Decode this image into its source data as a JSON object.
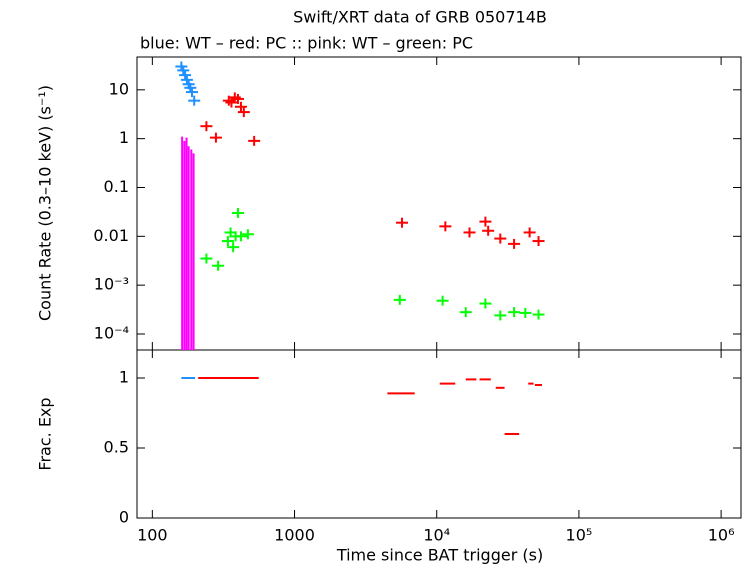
{
  "chart_data": [
    {
      "type": "scatter",
      "title": "Swift/XRT data of GRB 050714B",
      "subtitle": "blue: WT  – red: PC  :: pink: WT  – green: PC",
      "y_label": "Count Rate (0.3–10 keV) (s⁻¹)",
      "log_x": true,
      "log_y": true,
      "xlim": [
        78,
        1380000
      ],
      "ylim": [
        4.7e-05,
        47
      ],
      "yticks": [
        10,
        1,
        0.1,
        0.01,
        {
          "value": 0.001,
          "label": "10⁻³"
        },
        {
          "value": 0.0001,
          "label": "10⁻⁴"
        }
      ],
      "series": [
        {
          "color": "#1e90ff",
          "marker": "cross",
          "x": [
            160,
            165,
            170,
            175,
            180,
            185,
            190,
            197
          ],
          "values": [
            30,
            25,
            20,
            16,
            13,
            11,
            9,
            6
          ]
        },
        {
          "color": "#ff0000",
          "marker": "cross",
          "x": [
            240,
            280,
            345,
            360,
            380,
            400,
            420,
            440,
            520,
            5700,
            11500,
            17000,
            22000,
            23000,
            28000,
            35000,
            45000,
            52000
          ],
          "values": [
            1.8,
            1.05,
            6,
            5.5,
            7,
            6.5,
            4.5,
            3.5,
            0.9,
            0.019,
            0.016,
            0.012,
            0.02,
            0.013,
            0.009,
            0.007,
            0.012,
            0.008
          ]
        },
        {
          "color": "#ff00ff",
          "marker": "drop",
          "x": [
            162,
            168,
            174,
            180,
            188,
            195
          ],
          "values": [
            1.1,
            0.9,
            1.05,
            0.7,
            0.6,
            0.5
          ]
        },
        {
          "color": "#00ff00",
          "marker": "cross",
          "x": [
            240,
            290,
            340,
            355,
            370,
            385,
            400,
            420,
            470,
            5500,
            11000,
            16000,
            22000,
            28000,
            35000,
            42000,
            52000
          ],
          "values": [
            0.0035,
            0.0025,
            0.008,
            0.012,
            0.006,
            0.01,
            0.03,
            0.01,
            0.011,
            0.0005,
            0.00048,
            0.00028,
            0.00042,
            0.00024,
            0.00028,
            0.00027,
            0.00025
          ]
        }
      ]
    },
    {
      "type": "segment",
      "y_label": "Frac. Exp",
      "x_label": "Time since BAT trigger (s)",
      "log_x": true,
      "xlim": [
        78,
        1380000
      ],
      "ylim": [
        0,
        1.2
      ],
      "xticks": [
        100,
        1000,
        {
          "value": 10000,
          "label": "10⁴"
        },
        {
          "value": 100000,
          "label": "10⁵"
        },
        {
          "value": 1000000,
          "label": "10⁶"
        }
      ],
      "yticks": [
        0,
        0.5,
        1
      ],
      "series": [
        {
          "color": "#1e90ff",
          "x": [
            160
          ],
          "x_end": [
            200
          ],
          "values": [
            1
          ]
        },
        {
          "color": "#ff0000",
          "x": [
            210,
            4500,
            10500,
            16000,
            20000,
            26000,
            30000,
            44000,
            49000
          ],
          "x_end": [
            560,
            7000,
            13500,
            19000,
            24000,
            30000,
            38000,
            48000,
            55000
          ],
          "values": [
            1,
            0.89,
            0.96,
            0.99,
            0.99,
            0.93,
            0.6,
            0.96,
            0.95
          ]
        }
      ]
    }
  ]
}
